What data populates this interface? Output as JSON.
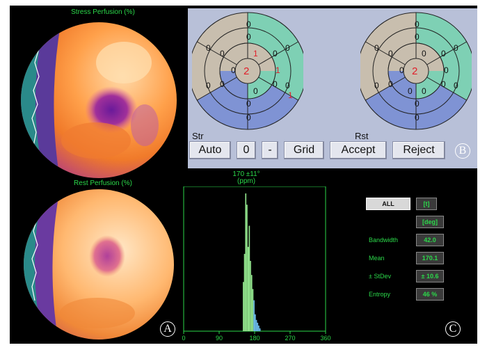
{
  "stress_title": "Stress Perfusion (%)",
  "rest_title": "Rest Perfusion (%)",
  "panel_letters": {
    "a": "A",
    "b": "B",
    "c": "C"
  },
  "bullseye": {
    "str_label": "Str",
    "rst_label": "Rst",
    "str_values": {
      "apex": "2",
      "mid_a": "1",
      "mid_b": "1",
      "mid_c": "1",
      "mid_d": "0",
      "mid_e": "0",
      "o1": "0",
      "o2": "0",
      "o3": "0",
      "o4": "0",
      "o5": "0",
      "o6": "0",
      "i1": "0",
      "i2": "0",
      "i3": "0",
      "i4": "0",
      "i5": "0",
      "i6": "0"
    },
    "rst_values": {
      "apex": "2",
      "mid_a": "0",
      "mid_b": "0",
      "mid_c": "0",
      "mid_d": "0",
      "mid_e": "0",
      "o1": "0",
      "o2": "0",
      "o3": "0",
      "o4": "0",
      "o5": "0",
      "o6": "0",
      "i1": "0",
      "i2": "0",
      "i3": "0",
      "i4": "0",
      "i5": "0",
      "i6": "0"
    }
  },
  "toolbar": {
    "auto": "Auto",
    "zero": "0",
    "minus": "-",
    "grid": "Grid",
    "accept": "Accept",
    "reject": "Reject"
  },
  "histogram": {
    "title_line1": "170 ±11°",
    "title_line2": "(ppm)",
    "x_ticks": [
      "0",
      "90",
      "180",
      "270",
      "360"
    ]
  },
  "chart_data": {
    "type": "bar",
    "x_range": [
      0,
      360
    ],
    "x_ticks": [
      0,
      90,
      180,
      270,
      360
    ],
    "bins": [
      {
        "x": 150,
        "v": 0.35
      },
      {
        "x": 153,
        "v": 0.55
      },
      {
        "x": 156,
        "v": 0.98
      },
      {
        "x": 159,
        "v": 0.9
      },
      {
        "x": 162,
        "v": 0.6
      },
      {
        "x": 165,
        "v": 0.75
      },
      {
        "x": 168,
        "v": 0.5
      },
      {
        "x": 171,
        "v": 0.4
      },
      {
        "x": 174,
        "v": 0.3
      },
      {
        "x": 177,
        "v": 0.22
      },
      {
        "x": 180,
        "v": 0.12
      },
      {
        "x": 183,
        "v": 0.08
      },
      {
        "x": 186,
        "v": 0.06
      },
      {
        "x": 189,
        "v": 0.04
      },
      {
        "x": 192,
        "v": 0.02
      }
    ]
  },
  "stats": {
    "all_label": "ALL",
    "unit_bracket": "[t]",
    "unit_deg": "[deg]",
    "bandwidth_label": "Bandwidth",
    "bandwidth_value": "42.0",
    "mean_label": "Mean",
    "mean_value": "170.1",
    "stdev_label": "± StDev",
    "stdev_value": "± 10.6",
    "entropy_label": "Entropy",
    "entropy_value": "46 %"
  },
  "colors": {
    "green": "#2bd94a",
    "teal": "#7ed0b4",
    "blue": "#7f93d4",
    "tan": "#c8beae"
  }
}
